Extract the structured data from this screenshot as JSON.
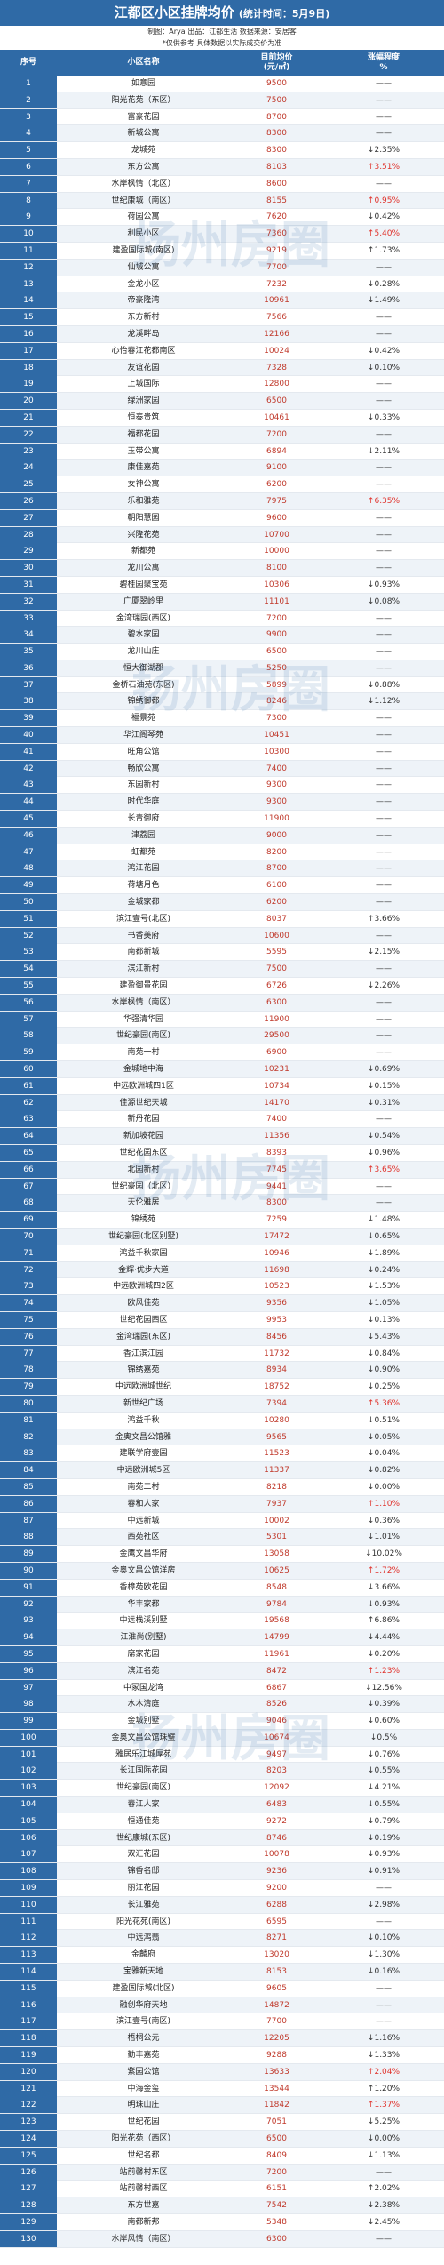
{
  "header": {
    "title": "江都区小区挂牌均价",
    "title_note": "(统计时间：5月9日)",
    "credits": "制图：Arya  出品：江都生活  数据来源：安居客",
    "note": "*仅供参考 具体数据以实际成交价为准"
  },
  "columns": [
    "序号",
    "小区名称",
    "目前均价\n(元/㎡)",
    "涨幅程度\n%"
  ],
  "watermark": "扬州房圈",
  "accent_color": "#2f6aa6",
  "rows": [
    [
      "1",
      "如意园",
      "9500",
      "——"
    ],
    [
      "2",
      "阳光花苑（东区）",
      "7500",
      "——"
    ],
    [
      "3",
      "富豪花园",
      "8700",
      "——"
    ],
    [
      "4",
      "新城公寓",
      "8300",
      "——"
    ],
    [
      "5",
      "龙城苑",
      "8300",
      "↓2.35%"
    ],
    [
      "6",
      "东方公寓",
      "8103",
      "↑3.51%"
    ],
    [
      "7",
      "水岸枫情（北区）",
      "8600",
      "——"
    ],
    [
      "8",
      "世纪康城（南区）",
      "8155",
      "↑0.95%"
    ],
    [
      "9",
      "荷园公寓",
      "7620",
      "↓0.42%"
    ],
    [
      "10",
      "利民小区",
      "7360",
      "↑5.40%"
    ],
    [
      "11",
      "建盈国际城(南区)",
      "9219",
      "↑1.73%"
    ],
    [
      "12",
      "仙城公寓",
      "7700",
      "——"
    ],
    [
      "13",
      "金龙小区",
      "7232",
      "↓0.28%"
    ],
    [
      "14",
      "帝豪隆湾",
      "10961",
      "↓1.49%"
    ],
    [
      "15",
      "东方新村",
      "7566",
      "——"
    ],
    [
      "16",
      "龙溪畔岛",
      "12166",
      "——"
    ],
    [
      "17",
      "心怡春江花都南区",
      "10024",
      "↓0.42%"
    ],
    [
      "18",
      "友谊花园",
      "7328",
      "↓0.10%"
    ],
    [
      "19",
      "上城国际",
      "12800",
      "——"
    ],
    [
      "20",
      "绿洲家园",
      "6500",
      "——"
    ],
    [
      "21",
      "恒泰贵筑",
      "10461",
      "↓0.33%"
    ],
    [
      "22",
      "福都花园",
      "7200",
      "——"
    ],
    [
      "23",
      "玉带公寓",
      "6894",
      "↓2.11%"
    ],
    [
      "24",
      "康佳嘉苑",
      "9100",
      "——"
    ],
    [
      "25",
      "女神公寓",
      "6200",
      "——"
    ],
    [
      "26",
      "乐和雅苑",
      "7975",
      "↑6.35%"
    ],
    [
      "27",
      "朝阳慧园",
      "9600",
      "——"
    ],
    [
      "28",
      "兴隆花苑",
      "10700",
      "——"
    ],
    [
      "29",
      "新都苑",
      "10000",
      "——"
    ],
    [
      "30",
      "龙川公寓",
      "8100",
      "——"
    ],
    [
      "31",
      "碧桂园聚宝苑",
      "10306",
      "↓0.93%"
    ],
    [
      "32",
      "广厦翠岭里",
      "11101",
      "↓0.08%"
    ],
    [
      "33",
      "金湾瑞园(西区)",
      "7200",
      "——"
    ],
    [
      "34",
      "碧水家园",
      "9900",
      "——"
    ],
    [
      "35",
      "龙川山庄",
      "6500",
      "——"
    ],
    [
      "36",
      "恒大御湖郡",
      "5250",
      "——"
    ],
    [
      "37",
      "金桥石油苑(东区)",
      "5899",
      "↓0.88%"
    ],
    [
      "38",
      "锦绣御都",
      "8246",
      "↓1.12%"
    ],
    [
      "39",
      "福景苑",
      "7300",
      "——"
    ],
    [
      "40",
      "华江阁琴苑",
      "10451",
      "——"
    ],
    [
      "41",
      "旺角公馆",
      "10300",
      "——"
    ],
    [
      "42",
      "畅欣公寓",
      "7400",
      "——"
    ],
    [
      "43",
      "东园新村",
      "9300",
      "——"
    ],
    [
      "44",
      "时代华庭",
      "9300",
      "——"
    ],
    [
      "45",
      "长青御府",
      "11900",
      "——"
    ],
    [
      "46",
      "津荔园",
      "9000",
      "——"
    ],
    [
      "47",
      "虹都苑",
      "8200",
      "——"
    ],
    [
      "48",
      "鸿江花园",
      "8700",
      "——"
    ],
    [
      "49",
      "荷塘月色",
      "6100",
      "——"
    ],
    [
      "50",
      "金城家都",
      "6200",
      "——"
    ],
    [
      "51",
      "滨江壹号(北区)",
      "8037",
      "↑3.66%"
    ],
    [
      "52",
      "书香美府",
      "10600",
      "——"
    ],
    [
      "53",
      "南都新城",
      "5595",
      "↓2.15%"
    ],
    [
      "54",
      "滨江新村",
      "7500",
      "——"
    ],
    [
      "55",
      "建盈御景花园",
      "6726",
      "↓2.26%"
    ],
    [
      "56",
      "水岸枫情（南区）",
      "6300",
      "——"
    ],
    [
      "57",
      "华强清华园",
      "11900",
      "——"
    ],
    [
      "58",
      "世纪豪园(南区)",
      "29500",
      "——"
    ],
    [
      "59",
      "南苑一村",
      "6900",
      "——"
    ],
    [
      "60",
      "金城地中海",
      "10231",
      "↓0.69%"
    ],
    [
      "61",
      "中远欧洲城四1区",
      "10734",
      "↓0.15%"
    ],
    [
      "62",
      "佳源世纪天城",
      "14170",
      "↓0.31%"
    ],
    [
      "63",
      "新丹花园",
      "7400",
      "——"
    ],
    [
      "64",
      "新加坡花园",
      "11356",
      "↓0.54%"
    ],
    [
      "65",
      "世纪花园东区",
      "8393",
      "↓0.96%"
    ],
    [
      "66",
      "北园新村",
      "7745",
      "↑3.65%"
    ],
    [
      "67",
      "世纪豪园（北区）",
      "9441",
      "——"
    ],
    [
      "68",
      "天伦雅居",
      "8300",
      "——"
    ],
    [
      "69",
      "锦绣苑",
      "7259",
      "↓1.48%"
    ],
    [
      "70",
      "世纪豪园(北区别墅)",
      "17472",
      "↓0.65%"
    ],
    [
      "71",
      "鸿益千秋家园",
      "10946",
      "↓1.89%"
    ],
    [
      "72",
      "金辉·优步大道",
      "11698",
      "↓0.24%"
    ],
    [
      "73",
      "中远欧洲城四2区",
      "10523",
      "↓1.53%"
    ],
    [
      "74",
      "欧风佳苑",
      "9356",
      "↓1.05%"
    ],
    [
      "75",
      "世纪花园西区",
      "9953",
      "↓0.13%"
    ],
    [
      "76",
      "金湾瑞园(东区)",
      "8456",
      "↓5.43%"
    ],
    [
      "77",
      "香江滨江园",
      "11732",
      "↓0.84%"
    ],
    [
      "78",
      "锦绣嘉苑",
      "8934",
      "↓0.90%"
    ],
    [
      "79",
      "中远欧洲城世纪",
      "18752",
      "↓0.25%"
    ],
    [
      "80",
      "新世纪广场",
      "7394",
      "↑5.36%"
    ],
    [
      "81",
      "鸿益千秋",
      "10280",
      "↓0.51%"
    ],
    [
      "82",
      "金奥文昌公馆雅",
      "9565",
      "↓0.05%"
    ],
    [
      "83",
      "建联学府壹园",
      "11523",
      "↓0.04%"
    ],
    [
      "84",
      "中远欧洲城5区",
      "11337",
      "↓0.82%"
    ],
    [
      "85",
      "南苑二村",
      "8218",
      "↓0.00%"
    ],
    [
      "86",
      "春和人家",
      "7937",
      "↑1.10%"
    ],
    [
      "87",
      "中远新城",
      "10002",
      "↓0.36%"
    ],
    [
      "88",
      "西苑社区",
      "5301",
      "↓1.01%"
    ],
    [
      "89",
      "金鹰文昌华府",
      "13058",
      "↓10.02%"
    ],
    [
      "90",
      "金奥文昌公馆洋房",
      "10625",
      "↑1.72%"
    ],
    [
      "91",
      "香樟苑欧花园",
      "8548",
      "↓3.66%"
    ],
    [
      "92",
      "华丰家都",
      "9784",
      "↓0.93%"
    ],
    [
      "93",
      "中远栈溪别墅",
      "19568",
      "↑6.86%"
    ],
    [
      "94",
      "江淮尚(别墅)",
      "14799",
      "↓4.44%"
    ],
    [
      "95",
      "席家花园",
      "11961",
      "↓0.20%"
    ],
    [
      "96",
      "滨江名苑",
      "8472",
      "↑1.23%"
    ],
    [
      "97",
      "中冢国龙湾",
      "6867",
      "↓12.56%"
    ],
    [
      "98",
      "水木清庭",
      "8526",
      "↓0.39%"
    ],
    [
      "99",
      "金城别墅",
      "9046",
      "↓0.60%"
    ],
    [
      "100",
      "金奥文昌公馆珠璧",
      "10674",
      "↓0.5%"
    ],
    [
      "101",
      "雅居乐江城厚苑",
      "9497",
      "↓0.76%"
    ],
    [
      "102",
      "长江国际花园",
      "8203",
      "↓0.55%"
    ],
    [
      "103",
      "世纪豪园(南区)",
      "12092",
      "↓4.21%"
    ],
    [
      "104",
      "春江人家",
      "6483",
      "↓0.55%"
    ],
    [
      "105",
      "恒通佳苑",
      "9272",
      "↓0.79%"
    ],
    [
      "106",
      "世纪康城(东区)",
      "8746",
      "↓0.19%"
    ],
    [
      "107",
      "双汇花园",
      "10078",
      "↓0.93%"
    ],
    [
      "108",
      "锦香名邸",
      "9236",
      "↓0.91%"
    ],
    [
      "109",
      "丽江花园",
      "9200",
      "——"
    ],
    [
      "110",
      "长江雅苑",
      "6288",
      "↓2.98%"
    ],
    [
      "111",
      "阳光花苑(南区)",
      "6595",
      "——"
    ],
    [
      "112",
      "中远鸿翡",
      "8271",
      "↓0.10%"
    ],
    [
      "113",
      "金麟府",
      "13020",
      "↓1.30%"
    ],
    [
      "114",
      "宝雅新天地",
      "8153",
      "↓0.16%"
    ],
    [
      "115",
      "建盈国际城(北区)",
      "9605",
      "——"
    ],
    [
      "116",
      "融创华府天地",
      "14872",
      "——"
    ],
    [
      "117",
      "滨江壹号(南区)",
      "7700",
      "——"
    ],
    [
      "118",
      "梧桐公元",
      "12205",
      "↓1.16%"
    ],
    [
      "119",
      "勤丰嘉苑",
      "9288",
      "↓1.33%"
    ],
    [
      "120",
      "紫园公馆",
      "13633",
      "↑2.04%"
    ],
    [
      "121",
      "中海金玺",
      "13544",
      "↑1.20%"
    ],
    [
      "122",
      "明珠山庄",
      "11842",
      "↑1.37%"
    ],
    [
      "123",
      "世纪花园",
      "7051",
      "↓5.25%"
    ],
    [
      "124",
      "阳光花苑（西区）",
      "6500",
      "↓0.00%"
    ],
    [
      "125",
      "世纪名都",
      "8409",
      "↓1.13%"
    ],
    [
      "126",
      "站前馨村东区",
      "7200",
      "——"
    ],
    [
      "127",
      "站前馨村西区",
      "6151",
      "↑2.02%"
    ],
    [
      "128",
      "东方世嘉",
      "7542",
      "↓2.38%"
    ],
    [
      "129",
      "南都新邦",
      "5348",
      "↓2.45%"
    ],
    [
      "130",
      "水岸风情（南区）",
      "6300",
      "——"
    ]
  ]
}
